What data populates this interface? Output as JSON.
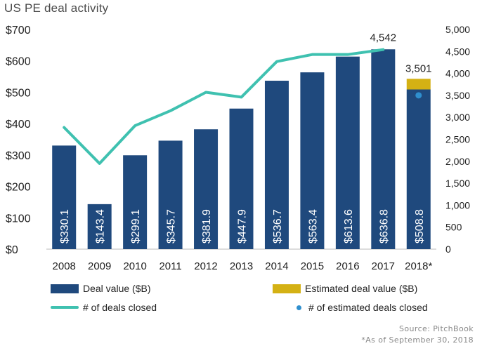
{
  "title": "US PE deal activity",
  "chart_data": {
    "type": "bar",
    "categories": [
      "2008",
      "2009",
      "2010",
      "2011",
      "2012",
      "2013",
      "2014",
      "2015",
      "2016",
      "2017",
      "2018*"
    ],
    "series": [
      {
        "name": "Deal value ($B)",
        "type": "bar",
        "axis": "left",
        "values": [
          330.1,
          143.4,
          299.1,
          345.7,
          381.9,
          447.9,
          536.7,
          563.4,
          613.6,
          636.8,
          508.8
        ],
        "labels": [
          "$330.1",
          "$143.4",
          "$299.1",
          "$345.7",
          "$381.9",
          "$447.9",
          "$536.7",
          "$563.4",
          "$613.6",
          "$636.8",
          "$508.8"
        ]
      },
      {
        "name": "Estimated deal value ($B)",
        "type": "bar-stacked",
        "axis": "left",
        "values": [
          null,
          null,
          null,
          null,
          null,
          null,
          null,
          null,
          null,
          null,
          34
        ]
      },
      {
        "name": "# of deals closed",
        "type": "line",
        "axis": "right",
        "values": [
          2770,
          1950,
          2810,
          3150,
          3570,
          3460,
          4270,
          4430,
          4430,
          4542,
          null
        ]
      },
      {
        "name": "# of estimated deals closed",
        "type": "point",
        "axis": "right",
        "values": [
          null,
          null,
          null,
          null,
          null,
          null,
          null,
          null,
          null,
          null,
          3501
        ]
      }
    ],
    "annotations": [
      {
        "category": "2017",
        "text": "4,542"
      },
      {
        "category": "2018*",
        "text": "3,501"
      }
    ],
    "y_left": {
      "ylim": [
        0,
        700
      ],
      "ticks": [
        "$0",
        "$100",
        "$200",
        "$300",
        "$400",
        "$500",
        "$600",
        "$700"
      ]
    },
    "y_right": {
      "ylim": [
        0,
        5000
      ],
      "ticks": [
        "0",
        "500",
        "1,000",
        "1,500",
        "2,000",
        "2,500",
        "3,000",
        "3,500",
        "4,000",
        "4,500",
        "5,000"
      ]
    },
    "grid": false,
    "legend_position": "bottom"
  },
  "legend": {
    "deal_value": "Deal value ($B)",
    "est_value": "Estimated deal value ($B)",
    "deals_closed": "# of deals closed",
    "est_deals": "# of estimated deals closed"
  },
  "colors": {
    "bar": "#1f497d",
    "estimate_bar": "#d4b114",
    "line": "#3fc1b0",
    "estimate_point": "#2f8fce"
  },
  "footer": {
    "source": "Source: PitchBook",
    "as_of": "*As of September 30, 2018"
  }
}
